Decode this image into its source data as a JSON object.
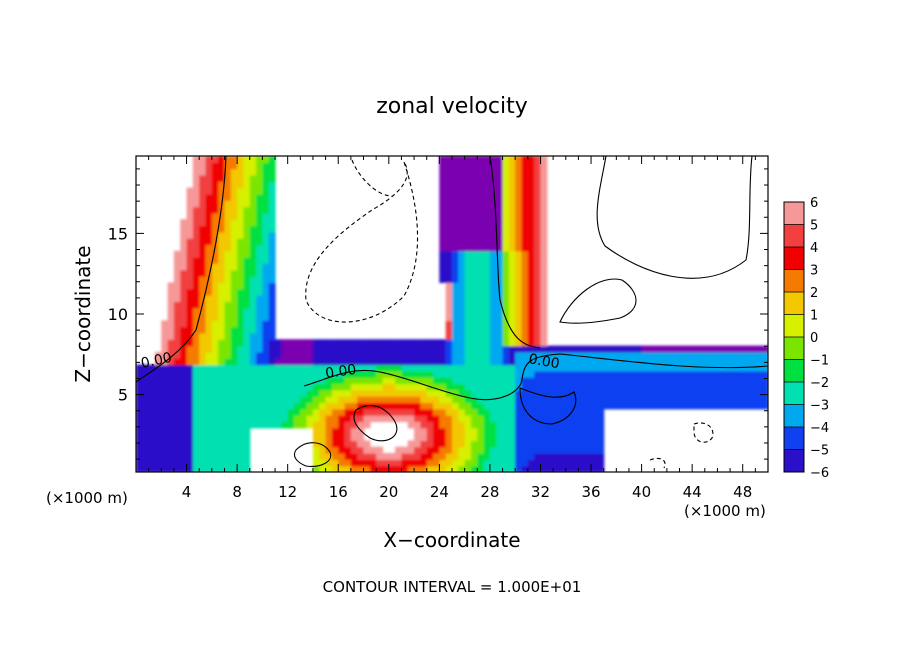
{
  "chart_data": {
    "type": "heatmap",
    "title": "zonal velocity",
    "xlabel": "X−coordinate",
    "ylabel": "Z−coordinate",
    "x_unit_left": "(×1000 m)",
    "x_unit_right": "(×1000 m)",
    "footer": "CONTOUR INTERVAL = 1.000E+01",
    "xlim": [
      0,
      50
    ],
    "ylim": [
      0.2,
      19.8
    ],
    "x_ticks": [
      4,
      8,
      12,
      16,
      20,
      24,
      28,
      32,
      36,
      40,
      44,
      48
    ],
    "x_tick_labels": [
      "4",
      "8",
      "12",
      "16",
      "20",
      "24",
      "28",
      "32",
      "36",
      "40",
      "44",
      "48"
    ],
    "y_ticks": [
      5,
      10,
      15
    ],
    "y_tick_labels": [
      "5",
      "10",
      "15"
    ],
    "colorbar": {
      "levels": [
        6,
        5,
        4,
        3,
        2,
        1,
        0,
        -1,
        -2,
        -3,
        -4,
        -5,
        -6
      ],
      "labels": [
        "6",
        "5",
        "4",
        "3",
        "2",
        "1",
        "0",
        "−1",
        "−2",
        "−3",
        "−4",
        "−5",
        "−6"
      ],
      "colors": [
        "#f79898",
        "#f24040",
        "#f00000",
        "#f57a00",
        "#f2c800",
        "#d6f000",
        "#7ae600",
        "#00e040",
        "#00e0b0",
        "#00a8f0",
        "#1040f0",
        "#2a10c8",
        "#7a00b0"
      ]
    },
    "contour_labels": [
      "0.00",
      "0.00",
      "0.00"
    ]
  }
}
